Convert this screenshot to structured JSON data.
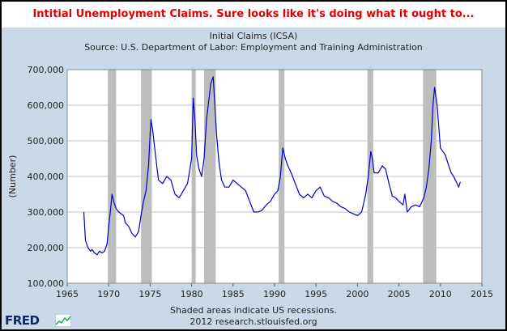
{
  "headline": "Intitial Unemployment Claims. Sure looks like it's doing what it ought to...",
  "footnote": "Shaded areas indicate US recessions.",
  "source_line": "2012 research.stlouisfed.org",
  "logo_text": "FRED",
  "colors": {
    "headline": "#e00000",
    "panel_background": "#c9d9e9",
    "plot_background": "#ffffff",
    "series_line": "#0000cc",
    "recession_shading": "#bdbdbd",
    "gridline": "#c0c0c0"
  },
  "chart_data": {
    "type": "line",
    "title": "Initial Claims (ICSA)",
    "subtitle": "Source: U.S. Department of Labor: Employment and Training Administration",
    "xlabel": "",
    "ylabel": "(Number)",
    "xlim": [
      1965,
      2015
    ],
    "ylim": [
      100000,
      700000
    ],
    "x_ticks": [
      1965,
      1970,
      1975,
      1980,
      1985,
      1990,
      1995,
      2000,
      2005,
      2010,
      2015
    ],
    "y_ticks": [
      100000,
      200000,
      300000,
      400000,
      500000,
      600000,
      700000
    ],
    "y_tick_labels": [
      "100,000",
      "200,000",
      "300,000",
      "400,000",
      "500,000",
      "600,000",
      "700,000"
    ],
    "grid": "horizontal",
    "recessions": [
      [
        1969.9,
        1970.9
      ],
      [
        1973.9,
        1975.2
      ],
      [
        1980.0,
        1980.5
      ],
      [
        1981.5,
        1982.9
      ],
      [
        1990.5,
        1991.2
      ],
      [
        2001.2,
        2001.9
      ],
      [
        2007.9,
        2009.5
      ]
    ],
    "series": [
      {
        "x": [
          1967.0,
          1967.2,
          1967.5,
          1967.8,
          1968.0,
          1968.3,
          1968.6,
          1968.9,
          1969.2,
          1969.5,
          1969.8,
          1970.0,
          1970.2,
          1970.4,
          1970.6,
          1970.9,
          1971.2,
          1971.5,
          1971.8,
          1972.0,
          1972.4,
          1972.8,
          1973.2,
          1973.6,
          1973.9,
          1974.2,
          1974.5,
          1974.8,
          1975.0,
          1975.1,
          1975.3,
          1975.6,
          1976.0,
          1976.5,
          1977.0,
          1977.5,
          1978.0,
          1978.5,
          1979.0,
          1979.5,
          1980.0,
          1980.2,
          1980.4,
          1980.6,
          1980.9,
          1981.2,
          1981.5,
          1981.8,
          1982.0,
          1982.3,
          1982.6,
          1982.8,
          1983.0,
          1983.3,
          1983.6,
          1984.0,
          1984.5,
          1985.0,
          1985.5,
          1986.0,
          1986.5,
          1987.0,
          1987.5,
          1988.0,
          1988.5,
          1989.0,
          1989.5,
          1990.0,
          1990.4,
          1990.7,
          1991.0,
          1991.3,
          1991.6,
          1992.0,
          1992.5,
          1993.0,
          1993.5,
          1994.0,
          1994.5,
          1995.0,
          1995.5,
          1996.0,
          1996.5,
          1997.0,
          1997.5,
          1998.0,
          1998.5,
          1999.0,
          1999.5,
          2000.0,
          2000.5,
          2001.0,
          2001.3,
          2001.6,
          2001.8,
          2002.0,
          2002.5,
          2003.0,
          2003.4,
          2003.8,
          2004.2,
          2004.6,
          2005.0,
          2005.5,
          2005.7,
          2006.0,
          2006.5,
          2007.0,
          2007.5,
          2008.0,
          2008.3,
          2008.6,
          2008.9,
          2009.1,
          2009.3,
          2009.6,
          2010.0,
          2010.3,
          2010.6,
          2011.0,
          2011.3,
          2011.6,
          2012.0,
          2012.2,
          2012.4
        ],
        "values": [
          300000,
          220000,
          200000,
          190000,
          195000,
          185000,
          180000,
          190000,
          185000,
          190000,
          210000,
          260000,
          300000,
          350000,
          330000,
          310000,
          300000,
          295000,
          290000,
          270000,
          260000,
          240000,
          230000,
          245000,
          290000,
          330000,
          360000,
          430000,
          520000,
          560000,
          530000,
          470000,
          390000,
          380000,
          400000,
          390000,
          350000,
          340000,
          360000,
          380000,
          450000,
          620000,
          560000,
          460000,
          420000,
          400000,
          450000,
          560000,
          600000,
          660000,
          680000,
          600000,
          520000,
          440000,
          390000,
          370000,
          370000,
          390000,
          380000,
          370000,
          360000,
          330000,
          300000,
          300000,
          305000,
          320000,
          330000,
          350000,
          360000,
          400000,
          480000,
          450000,
          430000,
          410000,
          380000,
          350000,
          340000,
          350000,
          340000,
          360000,
          370000,
          345000,
          340000,
          330000,
          325000,
          315000,
          310000,
          300000,
          295000,
          290000,
          300000,
          350000,
          400000,
          470000,
          450000,
          410000,
          410000,
          430000,
          420000,
          380000,
          345000,
          340000,
          330000,
          320000,
          350000,
          300000,
          315000,
          320000,
          315000,
          340000,
          370000,
          420000,
          500000,
          600000,
          650000,
          600000,
          480000,
          470000,
          460000,
          430000,
          410000,
          400000,
          380000,
          370000,
          385000
        ]
      }
    ]
  }
}
